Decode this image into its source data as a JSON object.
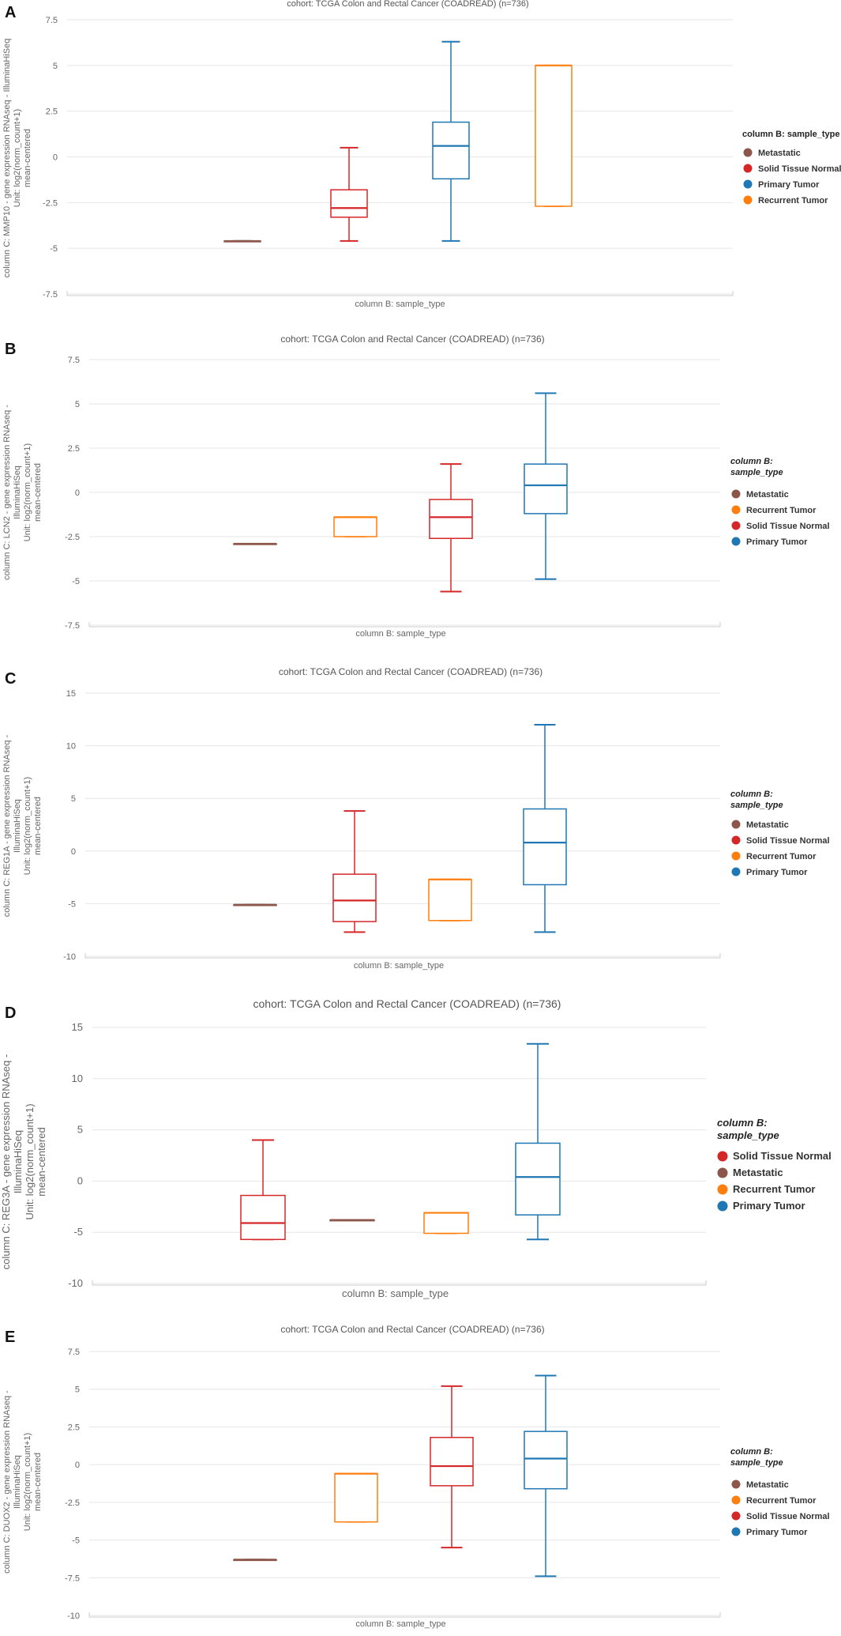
{
  "colors": {
    "Metastatic": "#8c564b",
    "Solid Tissue Normal": "#d62728",
    "Primary Tumor": "#1f77b4",
    "Recurrent Tumor": "#ff7f0e",
    "grid": "#e6e6e6",
    "axis_text": "#666666",
    "title_text": "#555555"
  },
  "chart_data": [
    {
      "panel": "A",
      "type": "boxplot",
      "title": "cohort: TCGA Colon and Rectal Cancer (COADREAD) (n=736)",
      "xlabel": "column B: sample_type",
      "ylabel": [
        "column C: MMP10 - gene expression RNAseq - IlluminaHiSeq",
        "Unit: log2(norm_count+1)",
        "mean-centered"
      ],
      "yticks": [
        7.5,
        5,
        2.5,
        0,
        -2.5,
        -5,
        -7.5
      ],
      "ytick_labels": [
        "7.5",
        "5",
        "2.5",
        "0",
        "-2.5",
        "-5",
        "-7.5"
      ],
      "ylim": [
        -7.5,
        7.5
      ],
      "legend_title": [
        "column B: sample_type"
      ],
      "legend": [
        "Metastatic",
        "Solid Tissue Normal",
        "Primary Tumor",
        "Recurrent Tumor"
      ],
      "boxes": [
        {
          "group": "Metastatic",
          "min": -4.6,
          "q1": -4.6,
          "median": -4.6,
          "q3": -4.6,
          "max": -4.6
        },
        {
          "group": "Solid Tissue Normal",
          "min": -4.6,
          "q1": -3.3,
          "median": -2.8,
          "q3": -1.8,
          "max": 0.5
        },
        {
          "group": "Primary Tumor",
          "min": -4.6,
          "q1": -1.2,
          "median": 0.6,
          "q3": 1.9,
          "max": 6.3
        },
        {
          "group": "Recurrent Tumor",
          "min": -2.7,
          "q1": -2.7,
          "median": 5.0,
          "q3": 5.0,
          "max": 5.0
        }
      ]
    },
    {
      "panel": "B",
      "type": "boxplot",
      "title": "cohort: TCGA Colon and Rectal Cancer (COADREAD) (n=736)",
      "xlabel": "column B: sample_type",
      "ylabel": [
        "column C: LCN2 - gene expression RNAseq -",
        "IlluminaHiSeq",
        "Unit: log2(norm_count+1)",
        "mean-centered"
      ],
      "yticks": [
        7.5,
        5,
        2.5,
        0,
        -2.5,
        -5,
        -7.5
      ],
      "ytick_labels": [
        "7.5",
        "5",
        "2.5",
        "0",
        "-2.5",
        "-5",
        "-7.5"
      ],
      "ylim": [
        -7.5,
        7.5
      ],
      "legend_title": [
        "column B:",
        "sample_type"
      ],
      "legend": [
        "Metastatic",
        "Recurrent Tumor",
        "Solid Tissue Normal",
        "Primary Tumor"
      ],
      "boxes": [
        {
          "group": "Metastatic",
          "min": -2.9,
          "q1": -2.9,
          "median": -2.9,
          "q3": -2.9,
          "max": -2.9
        },
        {
          "group": "Recurrent Tumor",
          "min": -2.5,
          "q1": -2.5,
          "median": -1.4,
          "q3": -1.4,
          "max": -1.4
        },
        {
          "group": "Solid Tissue Normal",
          "min": -5.6,
          "q1": -2.6,
          "median": -1.4,
          "q3": -0.4,
          "max": 1.6
        },
        {
          "group": "Primary Tumor",
          "min": -4.9,
          "q1": -1.2,
          "median": 0.4,
          "q3": 1.6,
          "max": 5.6
        }
      ]
    },
    {
      "panel": "C",
      "type": "boxplot",
      "title": "cohort: TCGA Colon and Rectal Cancer (COADREAD) (n=736)",
      "xlabel": "column B: sample_type",
      "ylabel": [
        "column C: REG1A - gene expression RNAseq -",
        "IlluminaHiSeq",
        "Unit: log2(norm_count+1)",
        "mean-centered"
      ],
      "yticks": [
        15,
        10,
        5,
        0,
        -5,
        -10
      ],
      "ytick_labels": [
        "15",
        "10",
        "5",
        "0",
        "-5",
        "-10"
      ],
      "ylim": [
        -10,
        15
      ],
      "legend_title": [
        "column B:",
        "sample_type"
      ],
      "legend": [
        "Metastatic",
        "Solid Tissue Normal",
        "Recurrent Tumor",
        "Primary Tumor"
      ],
      "boxes": [
        {
          "group": "Metastatic",
          "min": -5.1,
          "q1": -5.1,
          "median": -5.1,
          "q3": -5.1,
          "max": -5.1
        },
        {
          "group": "Solid Tissue Normal",
          "min": -7.7,
          "q1": -6.7,
          "median": -4.7,
          "q3": -2.2,
          "max": 3.8
        },
        {
          "group": "Recurrent Tumor",
          "min": -6.6,
          "q1": -6.6,
          "median": -2.7,
          "q3": -2.7,
          "max": -2.7
        },
        {
          "group": "Primary Tumor",
          "min": -7.7,
          "q1": -3.2,
          "median": 0.8,
          "q3": 4.0,
          "max": 12.0
        }
      ]
    },
    {
      "panel": "D",
      "type": "boxplot",
      "title": "cohort: TCGA Colon and Rectal Cancer (COADREAD) (n=736)",
      "xlabel": "column B: sample_type",
      "ylabel": [
        "column C: REG3A - gene expression RNAseq -",
        "IlluminaHiSeq",
        "Unit: log2(norm_count+1)",
        "mean-centered"
      ],
      "yticks": [
        15,
        10,
        5,
        0,
        -5,
        -10
      ],
      "ytick_labels": [
        "15",
        "10",
        "5",
        "0",
        "-5",
        "-10"
      ],
      "ylim": [
        -10,
        15
      ],
      "legend_title": [
        "column B:",
        "sample_type"
      ],
      "legend": [
        "Solid Tissue Normal",
        "Metastatic",
        "Recurrent Tumor",
        "Primary Tumor"
      ],
      "boxes": [
        {
          "group": "Solid Tissue Normal",
          "min": -5.7,
          "q1": -5.7,
          "median": -4.1,
          "q3": -1.4,
          "max": 4.0
        },
        {
          "group": "Metastatic",
          "min": -3.8,
          "q1": -3.8,
          "median": -3.8,
          "q3": -3.8,
          "max": -3.8
        },
        {
          "group": "Recurrent Tumor",
          "min": -5.1,
          "q1": -5.1,
          "median": -3.1,
          "q3": -3.1,
          "max": -3.1
        },
        {
          "group": "Primary Tumor",
          "min": -5.7,
          "q1": -3.3,
          "median": 0.4,
          "q3": 3.7,
          "max": 13.4
        }
      ]
    },
    {
      "panel": "E",
      "type": "boxplot",
      "title": "cohort: TCGA Colon and Rectal Cancer (COADREAD) (n=736)",
      "xlabel": "column B: sample_type",
      "ylabel": [
        "column C: DUOX2 - gene expression RNAseq -",
        "IlluminaHiSeq",
        "Unit: log2(norm_count+1)",
        "mean-centered"
      ],
      "yticks": [
        7.5,
        5,
        2.5,
        0,
        -2.5,
        -5,
        -7.5,
        -10
      ],
      "ytick_labels": [
        "7.5",
        "5",
        "2.5",
        "0",
        "-2.5",
        "-5",
        "-7.5",
        "-10"
      ],
      "ylim": [
        -10,
        7.5
      ],
      "legend_title": [
        "column B:",
        "sample_type"
      ],
      "legend": [
        "Metastatic",
        "Recurrent Tumor",
        "Solid Tissue Normal",
        "Primary Tumor"
      ],
      "boxes": [
        {
          "group": "Metastatic",
          "min": -6.3,
          "q1": -6.3,
          "median": -6.3,
          "q3": -6.3,
          "max": -6.3
        },
        {
          "group": "Recurrent Tumor",
          "min": -3.8,
          "q1": -3.8,
          "median": -0.6,
          "q3": -0.6,
          "max": -0.6
        },
        {
          "group": "Solid Tissue Normal",
          "min": -5.5,
          "q1": -1.4,
          "median": -0.1,
          "q3": 1.8,
          "max": 5.2
        },
        {
          "group": "Primary Tumor",
          "min": -7.4,
          "q1": -1.6,
          "median": 0.4,
          "q3": 2.2,
          "max": 5.9
        }
      ]
    }
  ]
}
